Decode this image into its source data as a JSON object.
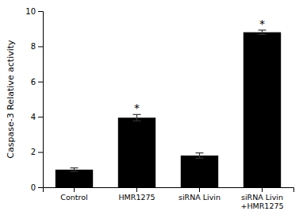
{
  "chart_data": {
    "type": "bar",
    "ylabel": "Caspase-3 Relative activity",
    "categories": [
      "Control",
      "HMR1275",
      "siRNA Livin",
      "siRNA Livin\n+HMR1275"
    ],
    "values": [
      1.0,
      3.95,
      1.8,
      8.8
    ],
    "errors": [
      0.1,
      0.18,
      0.15,
      0.12
    ],
    "color": "#000000",
    "ylim": [
      0,
      10
    ],
    "yticks": [
      0,
      2,
      4,
      6,
      8,
      10
    ],
    "grid": false,
    "annotations": [
      {
        "text": "*",
        "x": "HMR1275"
      },
      {
        "text": "*",
        "x": "siRNA Livin\n+HMR1275"
      }
    ]
  }
}
